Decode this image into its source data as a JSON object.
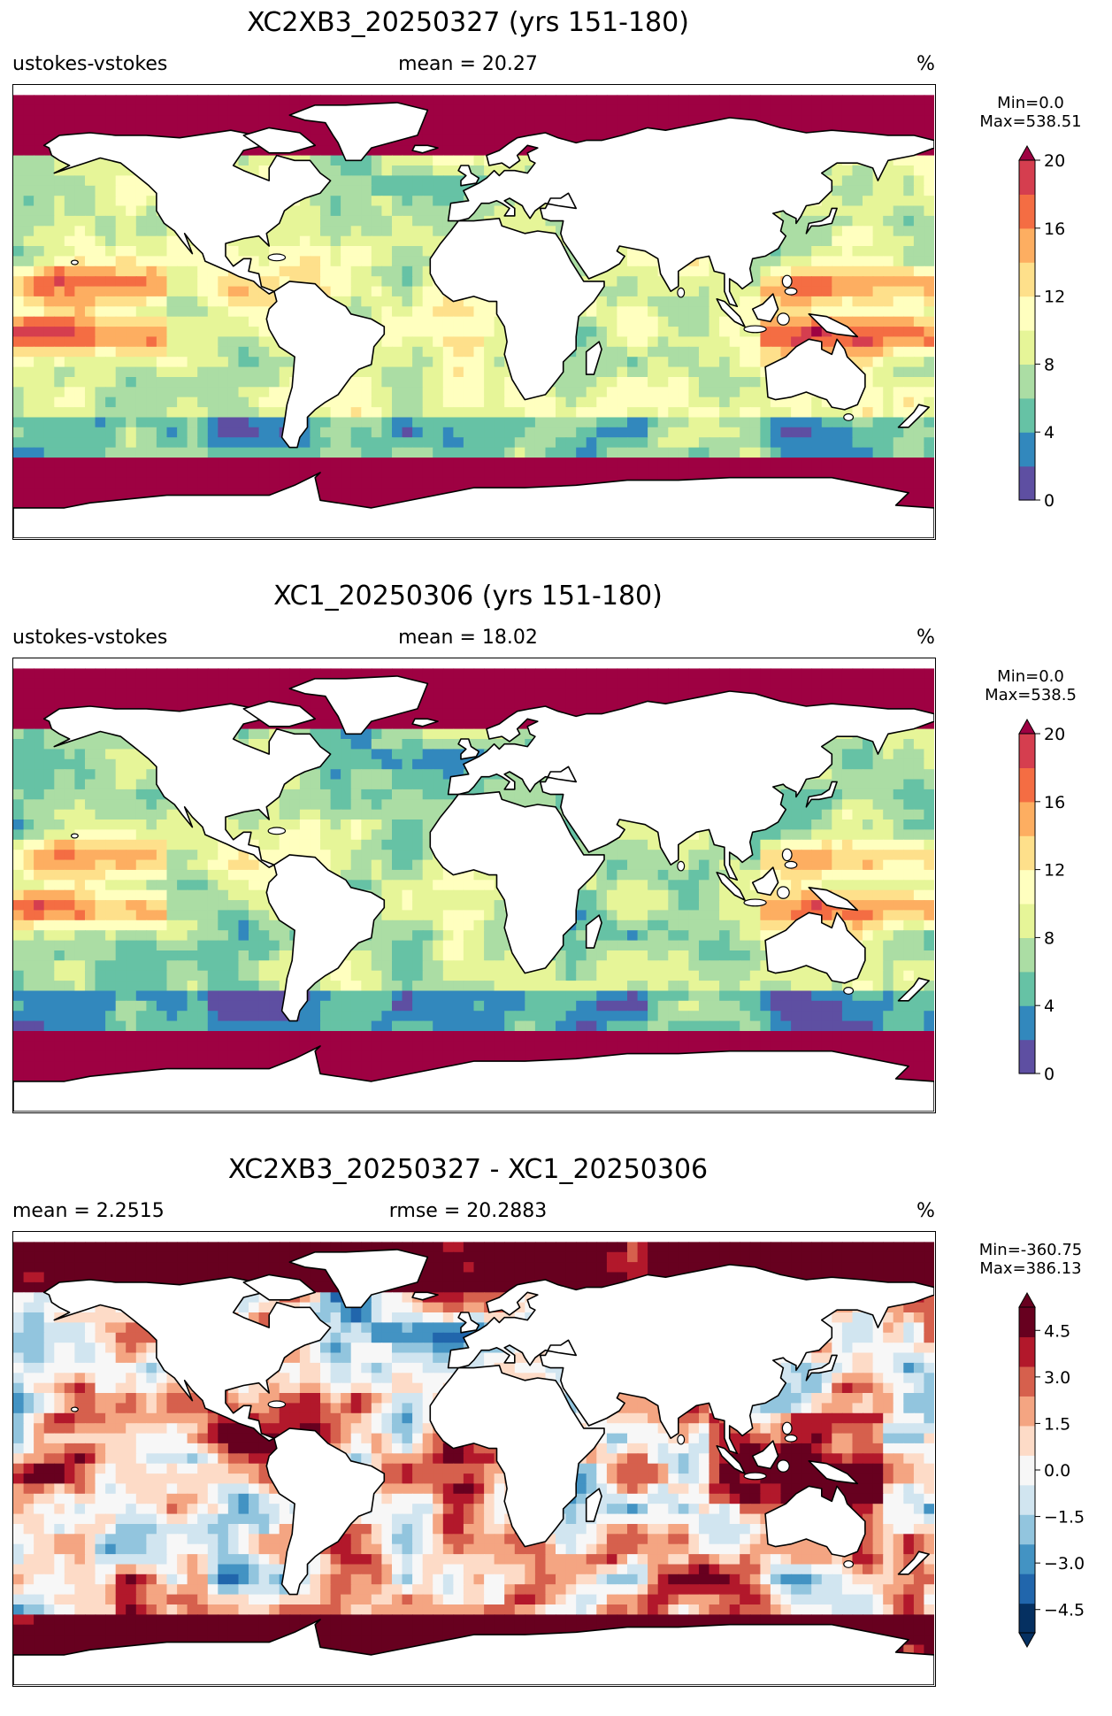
{
  "chart_data": [
    {
      "type": "heatmap",
      "title": "XC2XB3_20250327 (yrs 151-180)",
      "left_label": "ustokes-vstokes",
      "center_label": "mean = 20.27",
      "units": "%",
      "min_label": "Min=0.0",
      "max_label": "Max=538.51",
      "colorbar": {
        "ticks": [
          "0",
          "4",
          "8",
          "12",
          "16",
          "20"
        ],
        "tick_values": [
          0,
          4,
          8,
          12,
          16,
          20
        ],
        "range": [
          0,
          20
        ],
        "extend": "max",
        "colors": [
          "#5e4fa2",
          "#3288bd",
          "#66c2a5",
          "#abdda4",
          "#e6f598",
          "#ffffbf",
          "#fee08b",
          "#fdae61",
          "#f46d43",
          "#d53e4f",
          "#9e0142"
        ]
      },
      "variant": "a"
    },
    {
      "type": "heatmap",
      "title": "XC1_20250306 (yrs 151-180)",
      "left_label": "ustokes-vstokes",
      "center_label": "mean = 18.02",
      "units": "%",
      "min_label": "Min=0.0",
      "max_label": "Max=538.5",
      "colorbar": {
        "ticks": [
          "0",
          "4",
          "8",
          "12",
          "16",
          "20"
        ],
        "tick_values": [
          0,
          4,
          8,
          12,
          16,
          20
        ],
        "range": [
          0,
          20
        ],
        "extend": "max",
        "colors": [
          "#5e4fa2",
          "#3288bd",
          "#66c2a5",
          "#abdda4",
          "#e6f598",
          "#ffffbf",
          "#fee08b",
          "#fdae61",
          "#f46d43",
          "#d53e4f",
          "#9e0142"
        ]
      },
      "variant": "b"
    },
    {
      "type": "heatmap",
      "title": "XC2XB3_20250327 - XC1_20250306",
      "left_label": "mean = 2.2515",
      "center_label": "rmse = 20.2883",
      "units": "%",
      "min_label": "Min=-360.75",
      "max_label": "Max=386.13",
      "colorbar": {
        "ticks": [
          "−4.5",
          "−3.0",
          "−1.5",
          "0.0",
          "1.5",
          "3.0",
          "4.5"
        ],
        "tick_values": [
          -4.5,
          -3.0,
          -1.5,
          0.0,
          1.5,
          3.0,
          4.5
        ],
        "range": [
          -5.25,
          5.25
        ],
        "extend": "both",
        "colors": [
          "#053061",
          "#2166ac",
          "#4393c3",
          "#92c5de",
          "#d1e5f0",
          "#f7f7f7",
          "#fddbc7",
          "#f4a582",
          "#d6604d",
          "#b2182b",
          "#67001f"
        ]
      },
      "variant": "diff"
    }
  ]
}
